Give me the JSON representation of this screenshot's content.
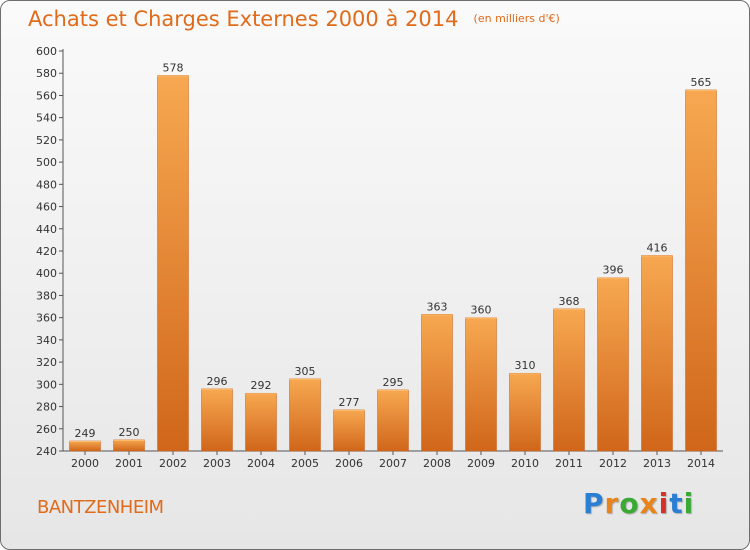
{
  "header": {
    "title": "Achats et Charges Externes 2000 à 2014",
    "subtitle": "(en milliers d'€)"
  },
  "footer": {
    "commune": "BANTZENHEIM",
    "logo": "Proxiti",
    "logo_colors": [
      "#2a7fd4",
      "#e8841a",
      "#3aaa35",
      "#e8841a",
      "#d6302b",
      "#2a7fd4",
      "#3aaa35"
    ]
  },
  "chart_data": {
    "type": "bar",
    "title": "Achats et Charges Externes 2000 à 2014",
    "subtitle": "(en milliers d'€)",
    "categories": [
      "2000",
      "2001",
      "2002",
      "2003",
      "2004",
      "2005",
      "2006",
      "2007",
      "2008",
      "2009",
      "2010",
      "2011",
      "2012",
      "2013",
      "2014"
    ],
    "values": [
      249,
      250,
      578,
      296,
      292,
      305,
      277,
      295,
      363,
      360,
      310,
      368,
      396,
      416,
      565
    ],
    "ylim": [
      240,
      600
    ],
    "yticks": [
      240,
      260,
      280,
      300,
      320,
      340,
      360,
      380,
      400,
      420,
      440,
      460,
      480,
      500,
      520,
      540,
      560,
      580,
      600
    ],
    "grid": false,
    "legend": "none",
    "bar_color": "#f08a2c",
    "bar_color_light": "#f7a851",
    "bar_color_dark": "#d0661a"
  }
}
